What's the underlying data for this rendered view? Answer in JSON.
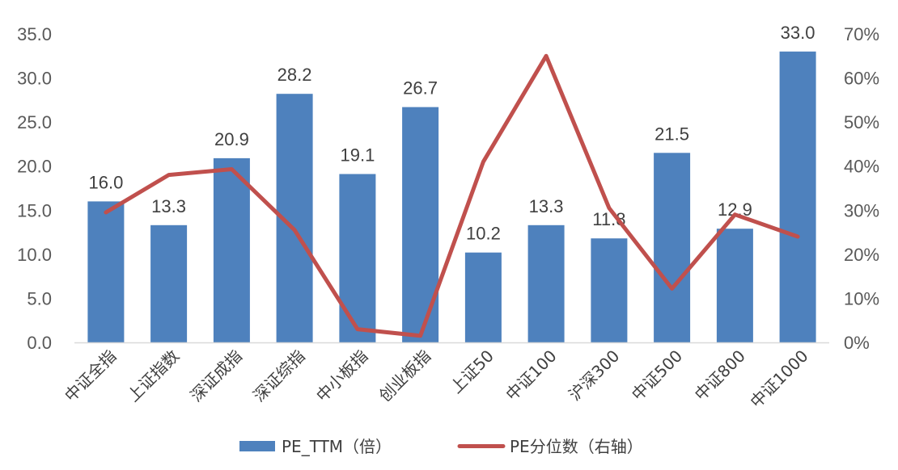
{
  "chart_data": {
    "type": "bar",
    "categories": [
      "中证全指",
      "上证指数",
      "深证成指",
      "深证综指",
      "中小板指",
      "创业板指",
      "上证50",
      "中证100",
      "沪深300",
      "中证500",
      "中证800",
      "中证1000"
    ],
    "series": [
      {
        "name": "PE_TTM（倍）",
        "type": "bar",
        "axis": "left",
        "color": "#4E81BD",
        "values": [
          16.0,
          13.3,
          20.9,
          28.2,
          19.1,
          26.7,
          10.2,
          13.3,
          11.8,
          21.5,
          12.9,
          33.0
        ],
        "labels": [
          "16.0",
          "13.3",
          "20.9",
          "28.2",
          "19.1",
          "26.7",
          "10.2",
          "13.3",
          "11.8",
          "21.5",
          "12.9",
          "33.0"
        ]
      },
      {
        "name": "PE分位数（右轴）",
        "type": "line",
        "axis": "right",
        "color": "#C0504D",
        "values": [
          0.295,
          0.38,
          0.393,
          0.255,
          0.03,
          0.015,
          0.41,
          0.65,
          0.305,
          0.122,
          0.29,
          0.24
        ]
      }
    ],
    "y_left": {
      "ylim": [
        0,
        35
      ],
      "ticks": [
        0,
        5,
        10,
        15,
        20,
        25,
        30,
        35
      ],
      "tick_labels": [
        "0.0",
        "5.0",
        "10.0",
        "15.0",
        "20.0",
        "25.0",
        "30.0",
        "35.0"
      ]
    },
    "y_right": {
      "ylim": [
        0,
        0.7
      ],
      "ticks": [
        0,
        0.1,
        0.2,
        0.3,
        0.4,
        0.5,
        0.6,
        0.7
      ],
      "tick_labels": [
        "0%",
        "10%",
        "20%",
        "30%",
        "40%",
        "50%",
        "60%",
        "70%"
      ]
    },
    "grid": false,
    "legend": {
      "position": "bottom",
      "items": [
        "PE_TTM（倍）",
        "PE分位数（右轴）"
      ]
    }
  }
}
